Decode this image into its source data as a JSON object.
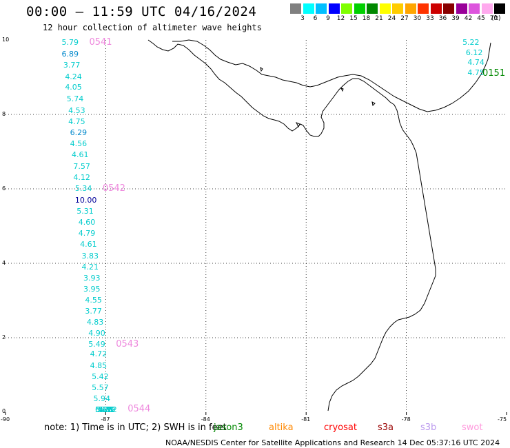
{
  "title": "00:00 – 11:59 UTC 04/16/2024",
  "subtitle": "12 hour collection of altimeter wave heights",
  "legend": {
    "labels": [
      "3",
      "6",
      "9",
      "12",
      "15",
      "18",
      "21",
      "24",
      "27",
      "30",
      "33",
      "36",
      "39",
      "42",
      "45",
      "70"
    ],
    "colors": [
      "#808080",
      "#00ffff",
      "#00bfff",
      "#0000ff",
      "#7fff00",
      "#00d000",
      "#008800",
      "#ffff00",
      "#ffcc00",
      "#ffa500",
      "#ff3300",
      "#cc0000",
      "#880000",
      "#990099",
      "#dd55dd",
      "#ffaaee",
      "#000000"
    ],
    "unit": "(ft)"
  },
  "map": {
    "lon_range": [
      -90,
      -75
    ],
    "lat_range": [
      0,
      10
    ],
    "x_ticks": [
      "-90",
      "-87",
      "-84",
      "-81",
      "-78",
      "-75"
    ],
    "y_ticks": [
      "10",
      "8",
      "6",
      "4",
      "2",
      "0"
    ],
    "grid": true
  },
  "tracks": [
    {
      "pass_label": "0541",
      "color": "#ee88dd",
      "readings": [
        {
          "lat": 9.93,
          "lon": -87.7,
          "value": "5.79",
          "color": "#00cccc"
        },
        {
          "lat": 9.62,
          "lon": -87.7,
          "value": "6.89",
          "color": "#0088cc"
        },
        {
          "lat": 9.32,
          "lon": -87.65,
          "value": "3.77",
          "color": "#00cccc"
        },
        {
          "lat": 9.0,
          "lon": -87.6,
          "value": "4.24",
          "color": "#00cccc"
        },
        {
          "lat": 8.72,
          "lon": -87.6,
          "value": "4.05",
          "color": "#00cccc"
        },
        {
          "lat": 8.4,
          "lon": -87.55,
          "value": "5.74",
          "color": "#00cccc"
        },
        {
          "lat": 8.1,
          "lon": -87.5,
          "value": "4.53",
          "color": "#00cccc"
        },
        {
          "lat": 7.8,
          "lon": -87.5,
          "value": "4.75",
          "color": "#00cccc"
        },
        {
          "lat": 7.5,
          "lon": -87.45,
          "value": "6.29",
          "color": "#0088cc"
        },
        {
          "lat": 7.2,
          "lon": -87.45,
          "value": "4.56",
          "color": "#00cccc"
        },
        {
          "lat": 6.9,
          "lon": -87.4,
          "value": "4.61",
          "color": "#00cccc"
        },
        {
          "lat": 6.6,
          "lon": -87.35,
          "value": "7.57",
          "color": "#00cccc"
        },
        {
          "lat": 6.3,
          "lon": -87.35,
          "value": "4.12",
          "color": "#00cccc"
        }
      ]
    },
    {
      "pass_label": "0542",
      "color": "#ee88dd",
      "readings": [
        {
          "lat": 6.0,
          "lon": -87.3,
          "value": "5.34",
          "color": "#00cccc"
        },
        {
          "lat": 5.68,
          "lon": -87.3,
          "value": "10.00",
          "color": "#000099"
        },
        {
          "lat": 5.38,
          "lon": -87.25,
          "value": "5.31",
          "color": "#00cccc"
        },
        {
          "lat": 5.1,
          "lon": -87.2,
          "value": "4.60",
          "color": "#00cccc"
        },
        {
          "lat": 4.8,
          "lon": -87.2,
          "value": "4.79",
          "color": "#00cccc"
        },
        {
          "lat": 4.5,
          "lon": -87.15,
          "value": "4.61",
          "color": "#00cccc"
        },
        {
          "lat": 4.18,
          "lon": -87.1,
          "value": "3.83",
          "color": "#00cccc"
        },
        {
          "lat": 3.88,
          "lon": -87.1,
          "value": "4.21",
          "color": "#00cccc"
        },
        {
          "lat": 3.6,
          "lon": -87.05,
          "value": "3.93",
          "color": "#00cccc"
        },
        {
          "lat": 3.3,
          "lon": -87.05,
          "value": "3.95",
          "color": "#00cccc"
        },
        {
          "lat": 3.0,
          "lon": -87.0,
          "value": "4.55",
          "color": "#00cccc"
        },
        {
          "lat": 2.7,
          "lon": -87.0,
          "value": "3.77",
          "color": "#00cccc"
        },
        {
          "lat": 2.4,
          "lon": -86.95,
          "value": "4.83",
          "color": "#00cccc"
        },
        {
          "lat": 2.12,
          "lon": -86.9,
          "value": "4.90",
          "color": "#00cccc"
        }
      ]
    },
    {
      "pass_label": "0543",
      "color": "#ee88dd",
      "readings": [
        {
          "lat": 1.82,
          "lon": -86.9,
          "value": "5.49",
          "color": "#00cccc"
        },
        {
          "lat": 1.55,
          "lon": -86.85,
          "value": "4.72",
          "color": "#00cccc"
        },
        {
          "lat": 1.25,
          "lon": -86.85,
          "value": "4.85",
          "color": "#00cccc"
        },
        {
          "lat": 0.95,
          "lon": -86.8,
          "value": "5.42",
          "color": "#00cccc"
        },
        {
          "lat": 0.65,
          "lon": -86.8,
          "value": "5.57",
          "color": "#00cccc"
        },
        {
          "lat": 0.35,
          "lon": -86.75,
          "value": "5.94",
          "color": "#00cccc"
        },
        {
          "lat": 0.05,
          "lon": -86.7,
          "value": "5.67",
          "color": "#00cccc"
        },
        {
          "lat": -0.25,
          "lon": -86.7,
          "value": "6.12",
          "color": "#00cccc"
        },
        {
          "lat": -0.55,
          "lon": -86.65,
          "value": "5.28",
          "color": "#00cccc"
        },
        {
          "lat": -0.85,
          "lon": -86.65,
          "value": "5.71",
          "color": "#00cccc"
        },
        {
          "lat": -1.15,
          "lon": -86.6,
          "value": "4.82",
          "color": "#00cccc"
        },
        {
          "lat": -1.45,
          "lon": -86.6,
          "value": "5.19",
          "color": "#00cccc"
        }
      ]
    },
    {
      "pass_label": "0544",
      "color": "#ee88dd",
      "readings": [
        {
          "lat": -1.75,
          "lon": -86.55,
          "value": "5.62",
          "color": "#00cccc"
        }
      ]
    },
    {
      "pass_label": "0151",
      "color": "#008800",
      "readings": [
        {
          "lat": 9.93,
          "lon": -75.7,
          "value": "5.22",
          "color": "#00cccc"
        },
        {
          "lat": 9.65,
          "lon": -75.6,
          "value": "6.12",
          "color": "#00cccc"
        },
        {
          "lat": 9.38,
          "lon": -75.55,
          "value": "4.74",
          "color": "#00cccc"
        },
        {
          "lat": 9.12,
          "lon": -75.55,
          "value": "4.75",
          "color": "#00cccc"
        }
      ]
    }
  ],
  "note": "note:  1) Time is in UTC;  2) SWH is in feet",
  "satellites": [
    {
      "name": "jason3",
      "color": "#008800"
    },
    {
      "name": "altika",
      "color": "#ff8800"
    },
    {
      "name": "cryosat",
      "color": "#ff0000"
    },
    {
      "name": "s3a",
      "color": "#990000"
    },
    {
      "name": "s3b",
      "color": "#bb99ee"
    },
    {
      "name": "swot",
      "color": "#ff99dd"
    }
  ],
  "footer": "NOAA/NESDIS Center for Satellite Applications and Research   14 Dec 05:37:16 UTC 2024"
}
